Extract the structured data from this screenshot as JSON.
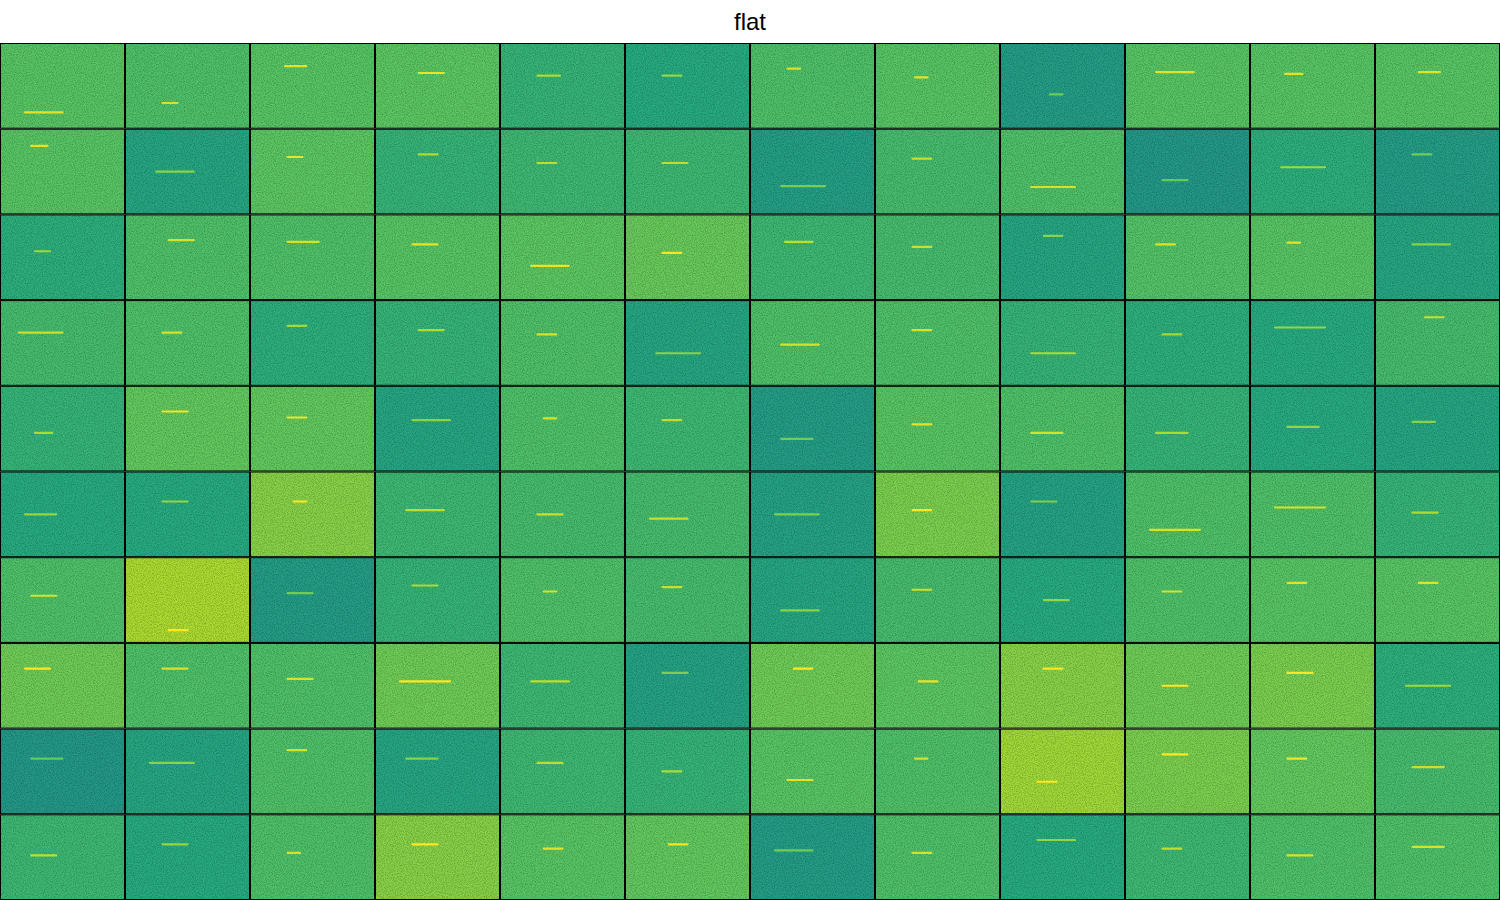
{
  "chart_data": {
    "type": "image_grid",
    "title": "flat",
    "tiles": [
      {
        "level": 0.74,
        "call": [
          0.2,
          0.5,
          0.81
        ]
      },
      {
        "level": 0.72,
        "call": [
          0.3,
          0.42,
          0.7
        ]
      },
      {
        "level": 0.74,
        "call": [
          0.28,
          0.45,
          0.27
        ]
      },
      {
        "level": 0.75,
        "call": [
          0.35,
          0.55,
          0.35
        ]
      },
      {
        "level": 0.66,
        "call": [
          0.3,
          0.48,
          0.38
        ]
      },
      {
        "level": 0.62,
        "call": [
          0.3,
          0.45,
          0.38
        ]
      },
      {
        "level": 0.72,
        "call": [
          0.3,
          0.4,
          0.3
        ]
      },
      {
        "level": 0.74,
        "call": [
          0.32,
          0.42,
          0.4
        ]
      },
      {
        "level": 0.56,
        "call": [
          0.4,
          0.5,
          0.6
        ]
      },
      {
        "level": 0.74,
        "call": [
          0.25,
          0.55,
          0.34
        ]
      },
      {
        "level": 0.74,
        "call": [
          0.28,
          0.42,
          0.36
        ]
      },
      {
        "level": 0.74,
        "call": [
          0.35,
          0.52,
          0.34
        ]
      },
      {
        "level": 0.74,
        "call": [
          0.25,
          0.38,
          0.2
        ]
      },
      {
        "level": 0.6,
        "call": [
          0.25,
          0.55,
          0.5
        ]
      },
      {
        "level": 0.75,
        "call": [
          0.3,
          0.42,
          0.33
        ]
      },
      {
        "level": 0.66,
        "call": [
          0.35,
          0.5,
          0.3
        ]
      },
      {
        "level": 0.68,
        "call": [
          0.3,
          0.45,
          0.4
        ]
      },
      {
        "level": 0.68,
        "call": [
          0.3,
          0.5,
          0.4
        ]
      },
      {
        "level": 0.57,
        "call": [
          0.25,
          0.6,
          0.67
        ]
      },
      {
        "level": 0.7,
        "call": [
          0.3,
          0.45,
          0.35
        ]
      },
      {
        "level": 0.72,
        "call": [
          0.25,
          0.6,
          0.68
        ]
      },
      {
        "level": 0.54,
        "call": [
          0.3,
          0.5,
          0.6
        ]
      },
      {
        "level": 0.64,
        "call": [
          0.25,
          0.6,
          0.45
        ]
      },
      {
        "level": 0.56,
        "call": [
          0.3,
          0.45,
          0.3
        ]
      },
      {
        "level": 0.64,
        "call": [
          0.28,
          0.4,
          0.43
        ]
      },
      {
        "level": 0.72,
        "call": [
          0.35,
          0.55,
          0.3
        ]
      },
      {
        "level": 0.72,
        "call": [
          0.3,
          0.55,
          0.32
        ]
      },
      {
        "level": 0.74,
        "call": [
          0.3,
          0.5,
          0.35
        ]
      },
      {
        "level": 0.75,
        "call": [
          0.25,
          0.55,
          0.6
        ]
      },
      {
        "level": 0.77,
        "call": [
          0.3,
          0.45,
          0.45
        ]
      },
      {
        "level": 0.68,
        "call": [
          0.28,
          0.5,
          0.32
        ]
      },
      {
        "level": 0.7,
        "call": [
          0.3,
          0.45,
          0.38
        ]
      },
      {
        "level": 0.6,
        "call": [
          0.35,
          0.5,
          0.25
        ]
      },
      {
        "level": 0.73,
        "call": [
          0.25,
          0.4,
          0.35
        ]
      },
      {
        "level": 0.74,
        "call": [
          0.3,
          0.4,
          0.33
        ]
      },
      {
        "level": 0.6,
        "call": [
          0.3,
          0.6,
          0.35
        ]
      },
      {
        "level": 0.7,
        "call": [
          0.15,
          0.5,
          0.38
        ]
      },
      {
        "level": 0.72,
        "call": [
          0.3,
          0.45,
          0.38
        ]
      },
      {
        "level": 0.64,
        "call": [
          0.3,
          0.45,
          0.3
        ]
      },
      {
        "level": 0.66,
        "call": [
          0.35,
          0.55,
          0.35
        ]
      },
      {
        "level": 0.72,
        "call": [
          0.3,
          0.45,
          0.4
        ]
      },
      {
        "level": 0.6,
        "call": [
          0.25,
          0.6,
          0.62
        ]
      },
      {
        "level": 0.72,
        "call": [
          0.25,
          0.55,
          0.52
        ]
      },
      {
        "level": 0.72,
        "call": [
          0.3,
          0.45,
          0.35
        ]
      },
      {
        "level": 0.66,
        "call": [
          0.25,
          0.6,
          0.62
        ]
      },
      {
        "level": 0.64,
        "call": [
          0.3,
          0.45,
          0.4
        ]
      },
      {
        "level": 0.62,
        "call": [
          0.2,
          0.6,
          0.32
        ]
      },
      {
        "level": 0.7,
        "call": [
          0.4,
          0.55,
          0.2
        ]
      },
      {
        "level": 0.66,
        "call": [
          0.28,
          0.42,
          0.55
        ]
      },
      {
        "level": 0.76,
        "call": [
          0.3,
          0.5,
          0.3
        ]
      },
      {
        "level": 0.76,
        "call": [
          0.3,
          0.45,
          0.37
        ]
      },
      {
        "level": 0.6,
        "call": [
          0.3,
          0.6,
          0.4
        ]
      },
      {
        "level": 0.72,
        "call": [
          0.35,
          0.45,
          0.38
        ]
      },
      {
        "level": 0.68,
        "call": [
          0.3,
          0.45,
          0.4
        ]
      },
      {
        "level": 0.56,
        "call": [
          0.25,
          0.5,
          0.62
        ]
      },
      {
        "level": 0.74,
        "call": [
          0.3,
          0.45,
          0.45
        ]
      },
      {
        "level": 0.72,
        "call": [
          0.25,
          0.5,
          0.55
        ]
      },
      {
        "level": 0.66,
        "call": [
          0.25,
          0.5,
          0.55
        ]
      },
      {
        "level": 0.62,
        "call": [
          0.3,
          0.55,
          0.48
        ]
      },
      {
        "level": 0.6,
        "call": [
          0.3,
          0.48,
          0.42
        ]
      },
      {
        "level": 0.62,
        "call": [
          0.2,
          0.45,
          0.5
        ]
      },
      {
        "level": 0.62,
        "call": [
          0.3,
          0.5,
          0.35
        ]
      },
      {
        "level": 0.82,
        "call": [
          0.35,
          0.45,
          0.35
        ]
      },
      {
        "level": 0.68,
        "call": [
          0.25,
          0.55,
          0.45
        ]
      },
      {
        "level": 0.7,
        "call": [
          0.3,
          0.5,
          0.5
        ]
      },
      {
        "level": 0.7,
        "call": [
          0.2,
          0.5,
          0.55
        ]
      },
      {
        "level": 0.58,
        "call": [
          0.2,
          0.55,
          0.5
        ]
      },
      {
        "level": 0.8,
        "call": [
          0.3,
          0.45,
          0.45
        ]
      },
      {
        "level": 0.58,
        "call": [
          0.25,
          0.45,
          0.35
        ]
      },
      {
        "level": 0.72,
        "call": [
          0.2,
          0.6,
          0.68
        ]
      },
      {
        "level": 0.72,
        "call": [
          0.2,
          0.6,
          0.42
        ]
      },
      {
        "level": 0.66,
        "call": [
          0.3,
          0.5,
          0.48
        ]
      },
      {
        "level": 0.72,
        "call": [
          0.25,
          0.45,
          0.45
        ]
      },
      {
        "level": 0.88,
        "call": [
          0.35,
          0.5,
          0.85
        ]
      },
      {
        "level": 0.56,
        "call": [
          0.3,
          0.5,
          0.42
        ]
      },
      {
        "level": 0.66,
        "call": [
          0.3,
          0.5,
          0.33
        ]
      },
      {
        "level": 0.72,
        "call": [
          0.35,
          0.45,
          0.4
        ]
      },
      {
        "level": 0.7,
        "call": [
          0.3,
          0.45,
          0.35
        ]
      },
      {
        "level": 0.6,
        "call": [
          0.25,
          0.55,
          0.62
        ]
      },
      {
        "level": 0.7,
        "call": [
          0.3,
          0.45,
          0.38
        ]
      },
      {
        "level": 0.62,
        "call": [
          0.35,
          0.55,
          0.5
        ]
      },
      {
        "level": 0.72,
        "call": [
          0.3,
          0.45,
          0.4
        ]
      },
      {
        "level": 0.74,
        "call": [
          0.3,
          0.45,
          0.3
        ]
      },
      {
        "level": 0.74,
        "call": [
          0.35,
          0.5,
          0.3
        ]
      },
      {
        "level": 0.78,
        "call": [
          0.2,
          0.4,
          0.3
        ]
      },
      {
        "level": 0.72,
        "call": [
          0.3,
          0.5,
          0.3
        ]
      },
      {
        "level": 0.72,
        "call": [
          0.3,
          0.5,
          0.42
        ]
      },
      {
        "level": 0.78,
        "call": [
          0.2,
          0.6,
          0.45
        ]
      },
      {
        "level": 0.68,
        "call": [
          0.25,
          0.55,
          0.45
        ]
      },
      {
        "level": 0.58,
        "call": [
          0.3,
          0.5,
          0.35
        ]
      },
      {
        "level": 0.78,
        "call": [
          0.35,
          0.5,
          0.3
        ]
      },
      {
        "level": 0.75,
        "call": [
          0.35,
          0.5,
          0.45
        ]
      },
      {
        "level": 0.82,
        "call": [
          0.35,
          0.5,
          0.3
        ]
      },
      {
        "level": 0.78,
        "call": [
          0.3,
          0.5,
          0.5
        ]
      },
      {
        "level": 0.8,
        "call": [
          0.3,
          0.5,
          0.35
        ]
      },
      {
        "level": 0.64,
        "call": [
          0.25,
          0.6,
          0.5
        ]
      },
      {
        "level": 0.54,
        "call": [
          0.25,
          0.5,
          0.35
        ]
      },
      {
        "level": 0.6,
        "call": [
          0.2,
          0.55,
          0.4
        ]
      },
      {
        "level": 0.72,
        "call": [
          0.3,
          0.45,
          0.25
        ]
      },
      {
        "level": 0.6,
        "call": [
          0.25,
          0.5,
          0.35
        ]
      },
      {
        "level": 0.68,
        "call": [
          0.3,
          0.5,
          0.4
        ]
      },
      {
        "level": 0.66,
        "call": [
          0.3,
          0.45,
          0.5
        ]
      },
      {
        "level": 0.74,
        "call": [
          0.3,
          0.5,
          0.6
        ]
      },
      {
        "level": 0.72,
        "call": [
          0.32,
          0.42,
          0.35
        ]
      },
      {
        "level": 0.86,
        "call": [
          0.3,
          0.45,
          0.62
        ]
      },
      {
        "level": 0.8,
        "call": [
          0.3,
          0.5,
          0.3
        ]
      },
      {
        "level": 0.76,
        "call": [
          0.3,
          0.45,
          0.35
        ]
      },
      {
        "level": 0.7,
        "call": [
          0.3,
          0.55,
          0.45
        ]
      },
      {
        "level": 0.68,
        "call": [
          0.25,
          0.45,
          0.48
        ]
      },
      {
        "level": 0.62,
        "call": [
          0.3,
          0.5,
          0.35
        ]
      },
      {
        "level": 0.72,
        "call": [
          0.3,
          0.4,
          0.45
        ]
      },
      {
        "level": 0.82,
        "call": [
          0.3,
          0.5,
          0.35
        ]
      },
      {
        "level": 0.74,
        "call": [
          0.35,
          0.5,
          0.4
        ]
      },
      {
        "level": 0.76,
        "call": [
          0.35,
          0.5,
          0.35
        ]
      },
      {
        "level": 0.56,
        "call": [
          0.2,
          0.5,
          0.42
        ]
      },
      {
        "level": 0.72,
        "call": [
          0.3,
          0.45,
          0.45
        ]
      },
      {
        "level": 0.62,
        "call": [
          0.3,
          0.6,
          0.3
        ]
      },
      {
        "level": 0.68,
        "call": [
          0.3,
          0.45,
          0.4
        ]
      },
      {
        "level": 0.72,
        "call": [
          0.3,
          0.5,
          0.48
        ]
      },
      {
        "level": 0.72,
        "call": [
          0.3,
          0.55,
          0.38
        ]
      }
    ]
  }
}
